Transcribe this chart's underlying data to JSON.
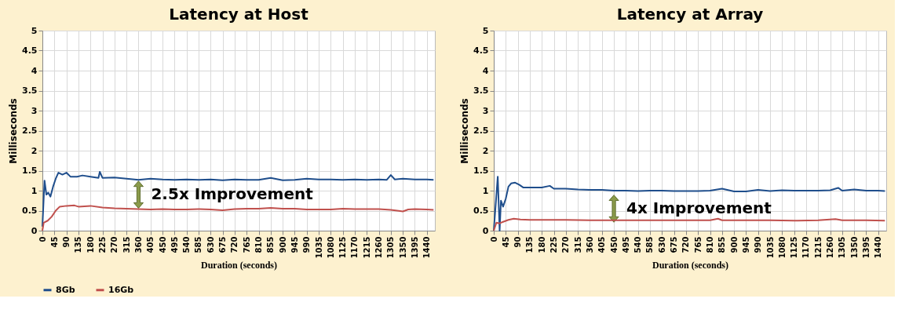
{
  "chart_data": [
    {
      "type": "line",
      "title": "Latency at Host",
      "xlabel": "Duration (seconds)",
      "ylabel": "Milliseconds",
      "xlim": [
        0,
        1470
      ],
      "ylim": [
        0,
        5
      ],
      "xticks": [
        0,
        45,
        90,
        135,
        180,
        225,
        270,
        315,
        360,
        405,
        450,
        495,
        540,
        585,
        630,
        675,
        720,
        765,
        810,
        855,
        900,
        945,
        990,
        1035,
        1080,
        1125,
        1170,
        1215,
        1260,
        1305,
        1350,
        1395,
        1440
      ],
      "yticks": [
        0,
        0.5,
        1,
        1.5,
        2,
        2.5,
        3,
        3.5,
        4,
        4.5,
        5
      ],
      "grid": true,
      "legend": "bottom",
      "marker": "none",
      "line_style": "solid",
      "annotations": [
        {
          "text": "2.5x Improvement",
          "x": 360,
          "y": 0.9
        }
      ],
      "series": [
        {
          "name": "8Gb",
          "color": "#1f4e8c",
          "x": [
            0,
            8,
            15,
            22,
            30,
            40,
            50,
            60,
            75,
            90,
            105,
            130,
            150,
            180,
            210,
            215,
            225,
            270,
            315,
            360,
            405,
            450,
            495,
            540,
            585,
            630,
            675,
            720,
            765,
            810,
            855,
            900,
            945,
            990,
            1035,
            1080,
            1125,
            1170,
            1215,
            1260,
            1290,
            1305,
            1320,
            1350,
            1395,
            1440,
            1465
          ],
          "values": [
            0.1,
            1.25,
            0.9,
            0.95,
            0.85,
            1.1,
            1.3,
            1.45,
            1.4,
            1.45,
            1.35,
            1.35,
            1.38,
            1.35,
            1.32,
            1.47,
            1.32,
            1.33,
            1.3,
            1.27,
            1.3,
            1.28,
            1.27,
            1.28,
            1.27,
            1.28,
            1.26,
            1.28,
            1.27,
            1.27,
            1.32,
            1.26,
            1.27,
            1.3,
            1.28,
            1.28,
            1.27,
            1.28,
            1.27,
            1.28,
            1.27,
            1.39,
            1.28,
            1.3,
            1.28,
            1.28,
            1.27
          ]
        },
        {
          "name": "16Gb",
          "color": "#c0504d",
          "x": [
            0,
            5,
            20,
            35,
            50,
            65,
            90,
            120,
            135,
            180,
            225,
            270,
            315,
            360,
            405,
            450,
            495,
            540,
            585,
            630,
            675,
            720,
            765,
            810,
            855,
            900,
            945,
            990,
            1035,
            1080,
            1125,
            1170,
            1215,
            1260,
            1305,
            1350,
            1370,
            1395,
            1440,
            1465
          ],
          "values": [
            0,
            0.2,
            0.25,
            0.35,
            0.5,
            0.6,
            0.62,
            0.63,
            0.6,
            0.62,
            0.58,
            0.56,
            0.55,
            0.54,
            0.53,
            0.54,
            0.53,
            0.53,
            0.54,
            0.53,
            0.51,
            0.54,
            0.55,
            0.55,
            0.57,
            0.55,
            0.55,
            0.53,
            0.53,
            0.53,
            0.55,
            0.54,
            0.54,
            0.54,
            0.52,
            0.48,
            0.53,
            0.54,
            0.53,
            0.52
          ]
        }
      ]
    },
    {
      "type": "line",
      "title": "Latency at Array",
      "xlabel": "Duration (seconds)",
      "ylabel": "Milliseconds",
      "xlim": [
        0,
        1470
      ],
      "ylim": [
        0,
        5
      ],
      "xticks": [
        0,
        45,
        90,
        135,
        180,
        225,
        270,
        315,
        360,
        405,
        450,
        495,
        540,
        585,
        630,
        675,
        720,
        765,
        810,
        855,
        900,
        945,
        990,
        1035,
        1080,
        1125,
        1170,
        1215,
        1260,
        1305,
        1350,
        1395,
        1440
      ],
      "yticks": [
        0,
        0.5,
        1,
        1.5,
        2,
        2.5,
        3,
        3.5,
        4,
        4.5,
        5
      ],
      "grid": true,
      "legend": "bottom",
      "marker": "none",
      "line_style": "solid",
      "annotations": [
        {
          "text": "4x Improvement",
          "x": 450,
          "y": 0.55
        }
      ],
      "series": [
        {
          "name": "8Gb",
          "color": "#1f4e8c",
          "x": [
            0,
            15,
            22,
            27,
            35,
            45,
            55,
            65,
            80,
            95,
            110,
            135,
            180,
            210,
            225,
            270,
            315,
            360,
            405,
            450,
            495,
            540,
            585,
            630,
            675,
            720,
            765,
            810,
            855,
            900,
            945,
            990,
            1035,
            1080,
            1125,
            1170,
            1215,
            1260,
            1290,
            1305,
            1350,
            1395,
            1440,
            1465
          ],
          "values": [
            0,
            1.35,
            0,
            0.75,
            0.6,
            0.8,
            1.1,
            1.18,
            1.2,
            1.15,
            1.08,
            1.08,
            1.08,
            1.12,
            1.05,
            1.05,
            1.03,
            1.02,
            1.02,
            1.0,
            1.0,
            0.99,
            1.0,
            1.0,
            0.99,
            0.99,
            0.99,
            1.0,
            1.05,
            0.98,
            0.98,
            1.02,
            0.99,
            1.01,
            1.0,
            1.0,
            1.0,
            1.01,
            1.07,
            1.0,
            1.03,
            1.0,
            1.0,
            0.99
          ]
        },
        {
          "name": "16Gb",
          "color": "#c0504d",
          "x": [
            0,
            10,
            20,
            35,
            55,
            75,
            100,
            135,
            180,
            270,
            360,
            450,
            540,
            630,
            720,
            810,
            840,
            855,
            945,
            1035,
            1125,
            1215,
            1280,
            1305,
            1395,
            1465
          ],
          "values": [
            0,
            0.2,
            0.18,
            0.22,
            0.27,
            0.3,
            0.28,
            0.27,
            0.27,
            0.27,
            0.26,
            0.26,
            0.26,
            0.26,
            0.26,
            0.26,
            0.3,
            0.26,
            0.26,
            0.26,
            0.25,
            0.26,
            0.29,
            0.26,
            0.26,
            0.25
          ]
        }
      ]
    }
  ]
}
